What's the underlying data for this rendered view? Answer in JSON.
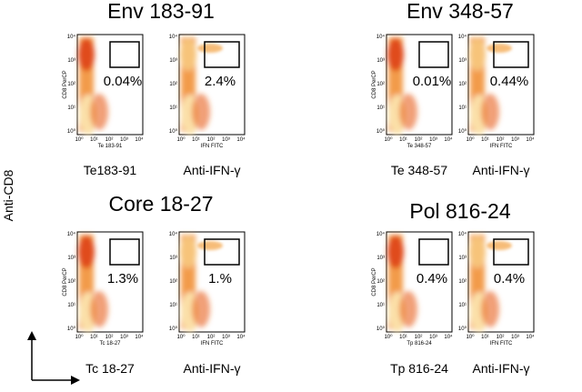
{
  "y_axis_label": "Anti-CD8",
  "tick_labels": [
    "10⁰",
    "10¹",
    "10²",
    "10³",
    "10⁴"
  ],
  "panels": [
    {
      "title": "Env 183-91",
      "plots": [
        {
          "percent": "0.04%",
          "label": "Te183-91",
          "axis_x": "Te 183-91",
          "axis_y": "CD8 PerCP"
        },
        {
          "percent": "2.4%",
          "label": "Anti-IFN-γ",
          "axis_x": "IFN FITC"
        }
      ]
    },
    {
      "title": "Env 348-57",
      "plots": [
        {
          "percent": "0.01%",
          "label": "Te 348-57",
          "axis_x": "Te 348-57",
          "axis_y": "CD8 PerCP"
        },
        {
          "percent": "0.44%",
          "label": "Anti-IFN-γ",
          "axis_x": "IFN FITC"
        }
      ]
    },
    {
      "title": "Core 18-27",
      "plots": [
        {
          "percent": "1.3%",
          "label": "Tc 18-27",
          "axis_x": "Tc 18-27",
          "axis_y": "CD8 PerCP"
        },
        {
          "percent": "1.%",
          "label": "Anti-IFN-γ",
          "axis_x": "IFN FITC"
        }
      ]
    },
    {
      "title": "Pol 816-24",
      "plots": [
        {
          "percent": "0.4%",
          "label": "Tp 816-24",
          "axis_x": "Tp 816-24",
          "axis_y": "CD8 PerCP"
        },
        {
          "percent": "0.4%",
          "label": "Anti-IFN-γ",
          "axis_x": "IFN FITC"
        }
      ]
    }
  ]
}
